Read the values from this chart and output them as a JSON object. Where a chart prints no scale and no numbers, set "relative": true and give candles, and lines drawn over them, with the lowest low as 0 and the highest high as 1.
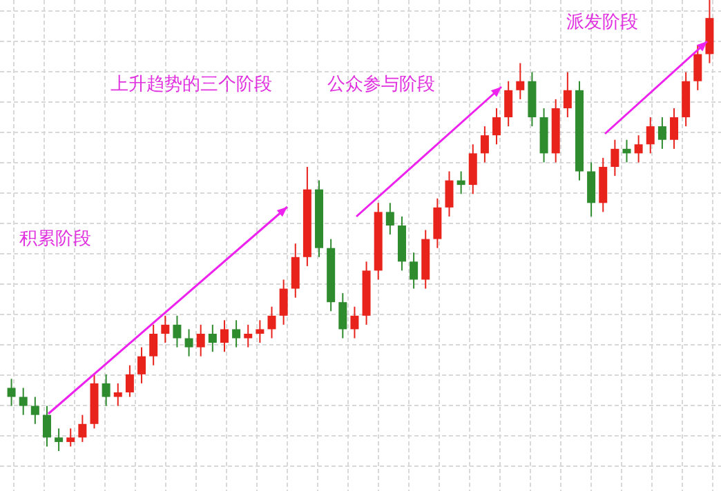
{
  "chart_data": {
    "type": "candlestick",
    "relative": true,
    "grid": true,
    "categories": [
      null,
      null,
      null,
      null,
      null,
      null,
      null,
      null,
      null,
      null,
      null,
      null,
      null,
      null,
      null,
      null,
      null,
      null,
      null,
      null,
      null,
      null,
      null,
      null,
      null,
      null,
      null,
      null,
      null,
      null,
      null,
      null,
      null,
      null,
      null,
      null,
      null,
      null,
      null,
      null,
      null,
      null,
      null,
      null,
      null,
      null,
      null,
      null,
      null,
      null,
      null,
      null,
      null,
      null,
      null,
      null,
      null,
      null,
      null,
      null
    ],
    "ohlc": [
      [
        0.14,
        0.16,
        0.1,
        0.12
      ],
      [
        0.12,
        0.14,
        0.08,
        0.1
      ],
      [
        0.1,
        0.12,
        0.06,
        0.08
      ],
      [
        0.08,
        0.1,
        0.01,
        0.03
      ],
      [
        0.03,
        0.05,
        0.0,
        0.02
      ],
      [
        0.02,
        0.05,
        0.01,
        0.03
      ],
      [
        0.03,
        0.08,
        0.02,
        0.06
      ],
      [
        0.06,
        0.17,
        0.05,
        0.15
      ],
      [
        0.15,
        0.17,
        0.1,
        0.12
      ],
      [
        0.12,
        0.15,
        0.1,
        0.13
      ],
      [
        0.13,
        0.19,
        0.12,
        0.17
      ],
      [
        0.17,
        0.23,
        0.15,
        0.21
      ],
      [
        0.21,
        0.28,
        0.19,
        0.26
      ],
      [
        0.26,
        0.3,
        0.24,
        0.28
      ],
      [
        0.28,
        0.3,
        0.23,
        0.25
      ],
      [
        0.25,
        0.27,
        0.21,
        0.23
      ],
      [
        0.23,
        0.28,
        0.21,
        0.26
      ],
      [
        0.26,
        0.28,
        0.22,
        0.24
      ],
      [
        0.24,
        0.29,
        0.22,
        0.27
      ],
      [
        0.27,
        0.29,
        0.23,
        0.25
      ],
      [
        0.25,
        0.28,
        0.23,
        0.26
      ],
      [
        0.26,
        0.29,
        0.24,
        0.27
      ],
      [
        0.27,
        0.32,
        0.25,
        0.3
      ],
      [
        0.3,
        0.38,
        0.28,
        0.36
      ],
      [
        0.36,
        0.46,
        0.34,
        0.43
      ],
      [
        0.43,
        0.63,
        0.41,
        0.58
      ],
      [
        0.58,
        0.6,
        0.43,
        0.45
      ],
      [
        0.45,
        0.47,
        0.31,
        0.33
      ],
      [
        0.33,
        0.35,
        0.25,
        0.27
      ],
      [
        0.27,
        0.32,
        0.25,
        0.3
      ],
      [
        0.3,
        0.42,
        0.28,
        0.4
      ],
      [
        0.4,
        0.55,
        0.38,
        0.53
      ],
      [
        0.53,
        0.55,
        0.48,
        0.5
      ],
      [
        0.5,
        0.52,
        0.4,
        0.42
      ],
      [
        0.42,
        0.44,
        0.36,
        0.38
      ],
      [
        0.38,
        0.49,
        0.36,
        0.47
      ],
      [
        0.47,
        0.56,
        0.45,
        0.54
      ],
      [
        0.54,
        0.62,
        0.52,
        0.6
      ],
      [
        0.6,
        0.62,
        0.57,
        0.59
      ],
      [
        0.59,
        0.68,
        0.57,
        0.66
      ],
      [
        0.66,
        0.72,
        0.64,
        0.7
      ],
      [
        0.7,
        0.76,
        0.68,
        0.74
      ],
      [
        0.74,
        0.82,
        0.72,
        0.8
      ],
      [
        0.8,
        0.86,
        0.78,
        0.82
      ],
      [
        0.82,
        0.84,
        0.72,
        0.74
      ],
      [
        0.74,
        0.76,
        0.64,
        0.66
      ],
      [
        0.66,
        0.78,
        0.64,
        0.76
      ],
      [
        0.76,
        0.84,
        0.74,
        0.8
      ],
      [
        0.8,
        0.82,
        0.6,
        0.62
      ],
      [
        0.62,
        0.64,
        0.52,
        0.55
      ],
      [
        0.55,
        0.65,
        0.53,
        0.63
      ],
      [
        0.63,
        0.69,
        0.61,
        0.67
      ],
      [
        0.67,
        0.69,
        0.64,
        0.66
      ],
      [
        0.66,
        0.7,
        0.64,
        0.68
      ],
      [
        0.68,
        0.74,
        0.66,
        0.72
      ],
      [
        0.72,
        0.74,
        0.67,
        0.69
      ],
      [
        0.69,
        0.76,
        0.67,
        0.74
      ],
      [
        0.74,
        0.84,
        0.72,
        0.82
      ],
      [
        0.82,
        0.9,
        0.8,
        0.88
      ],
      [
        0.88,
        1.0,
        0.86,
        0.96
      ]
    ],
    "colors": [
      "#2e8b2e",
      "#2e8b2e",
      "#2e8b2e",
      "#2e8b2e",
      "#2e8b2e",
      "#e8231c",
      "#e8231c",
      "#e8231c",
      "#2e8b2e",
      "#e8231c",
      "#e8231c",
      "#e8231c",
      "#e8231c",
      "#e8231c",
      "#2e8b2e",
      "#2e8b2e",
      "#e8231c",
      "#2e8b2e",
      "#e8231c",
      "#2e8b2e",
      "#e8231c",
      "#e8231c",
      "#e8231c",
      "#e8231c",
      "#e8231c",
      "#e8231c",
      "#2e8b2e",
      "#2e8b2e",
      "#2e8b2e",
      "#e8231c",
      "#e8231c",
      "#e8231c",
      "#2e8b2e",
      "#2e8b2e",
      "#2e8b2e",
      "#e8231c",
      "#e8231c",
      "#e8231c",
      "#2e8b2e",
      "#e8231c",
      "#e8231c",
      "#e8231c",
      "#e8231c",
      "#e8231c",
      "#2e8b2e",
      "#2e8b2e",
      "#e8231c",
      "#e8231c",
      "#2e8b2e",
      "#2e8b2e",
      "#e8231c",
      "#e8231c",
      "#2e8b2e",
      "#e8231c",
      "#e8231c",
      "#2e8b2e",
      "#e8231c",
      "#e8231c",
      "#e8231c",
      "#e8231c"
    ],
    "annotations": [
      "积累阶段",
      "上升趋势的三个阶段",
      "公众参与阶段",
      "派发阶段"
    ]
  }
}
